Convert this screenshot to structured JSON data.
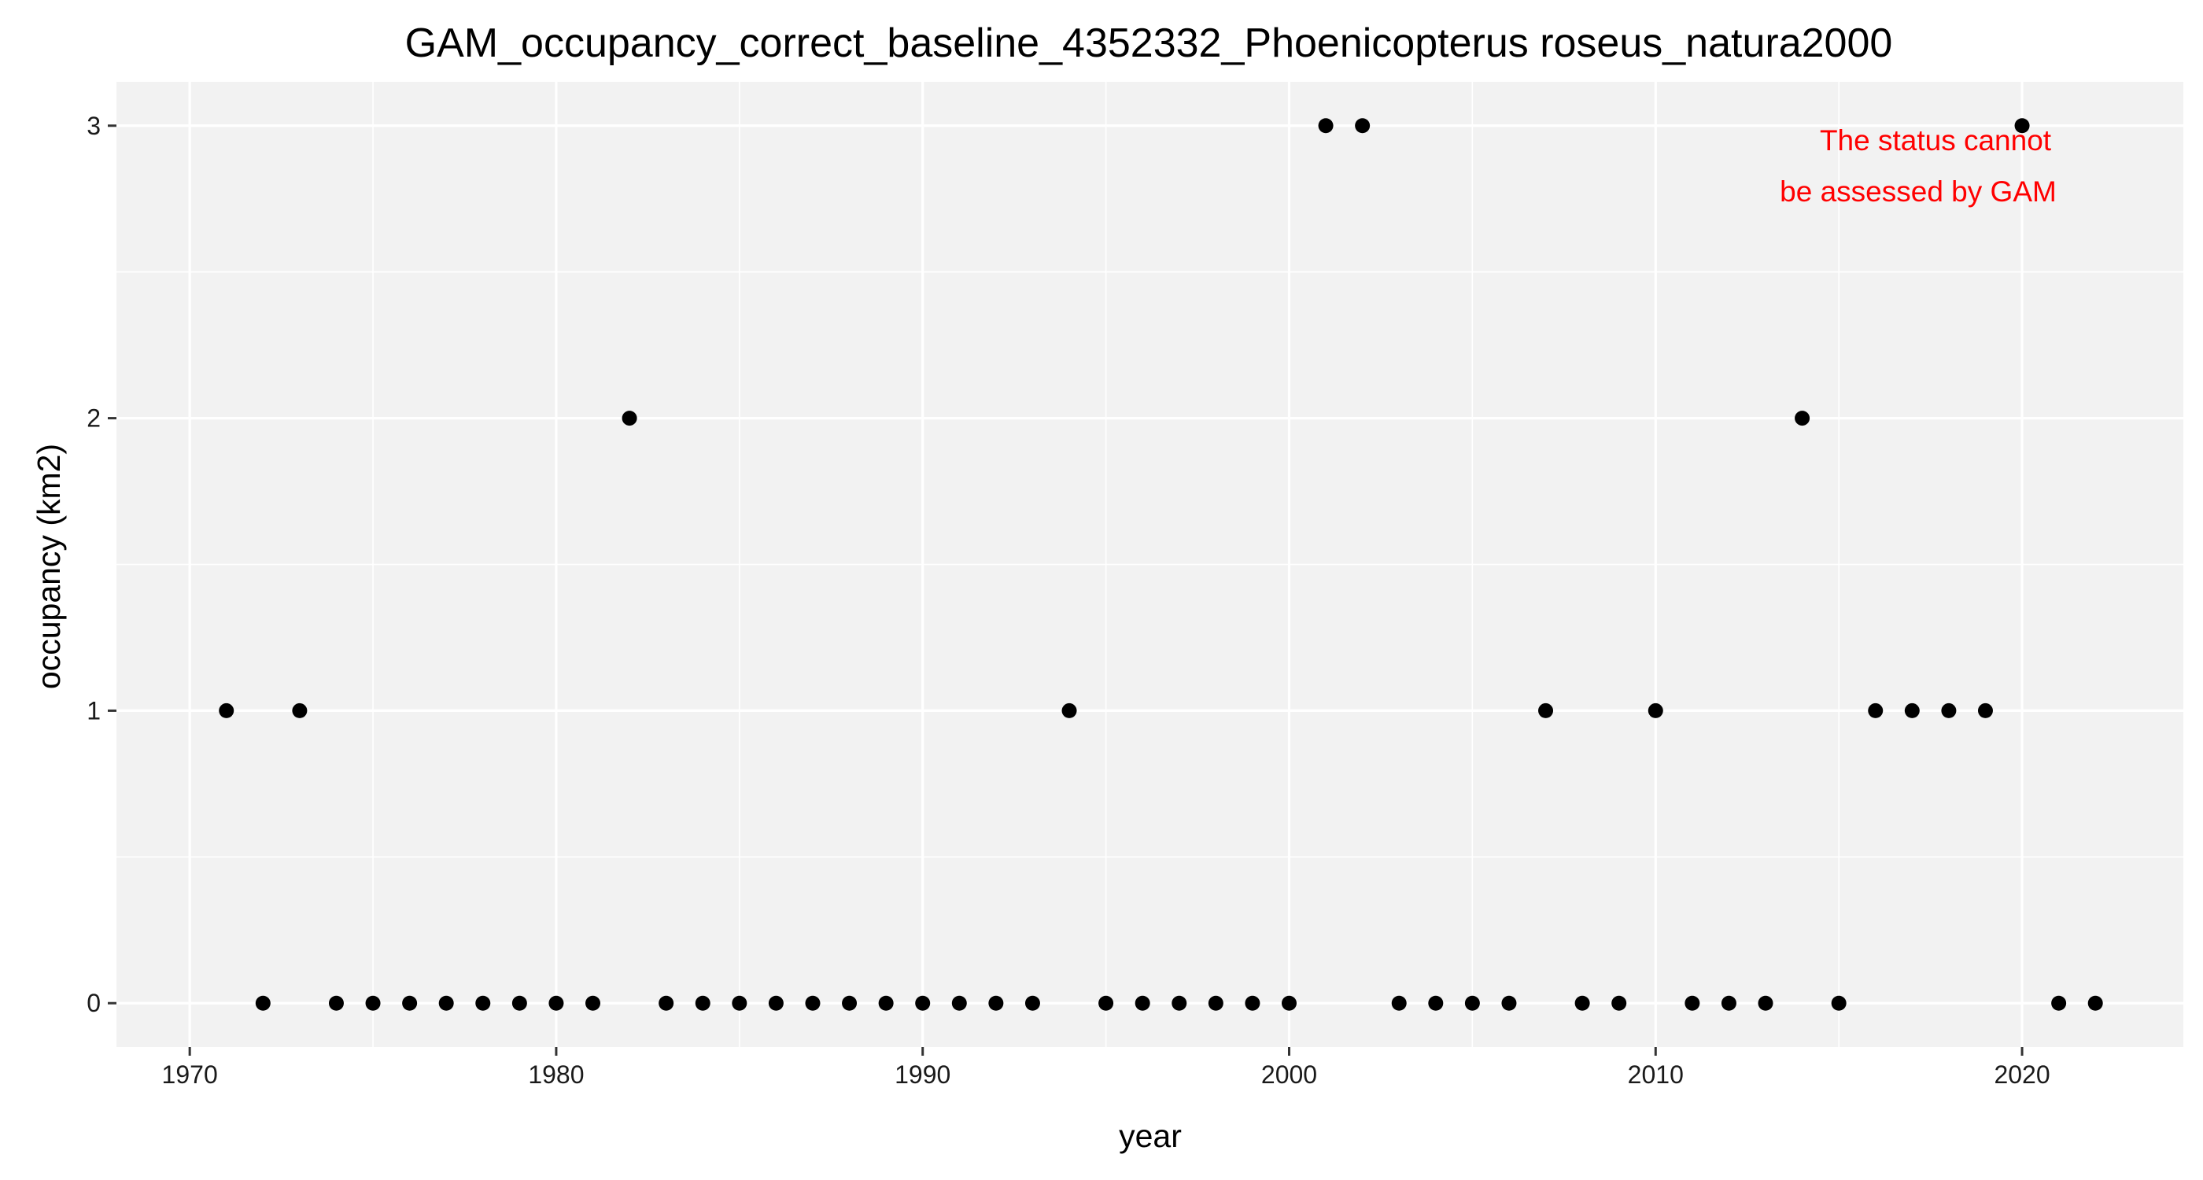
{
  "chart_data": {
    "type": "scatter",
    "title": "GAM_occupancy_correct_baseline_4352332_Phoenicopterus roseus_natura2000",
    "xlabel": "year",
    "ylabel": "occupancy (km2)",
    "xlim": [
      1968,
      2024.4
    ],
    "ylim": [
      -0.15,
      3.15
    ],
    "x_ticks": [
      1970,
      1980,
      1990,
      2000,
      2010,
      2020
    ],
    "y_ticks": [
      0,
      1,
      2,
      3
    ],
    "x_tick_labels": [
      "1970",
      "1980",
      "1990",
      "2000",
      "2010",
      "2020"
    ],
    "y_tick_labels": [
      "0",
      "1",
      "2",
      "3"
    ],
    "grid": true,
    "panel_background": "#f2f2f2",
    "grid_color": "#ffffff",
    "point_color": "#000000",
    "annotation": {
      "lines": [
        "The status cannot",
        "be assessed by GAM"
      ],
      "color": "#ff0000"
    },
    "x": [
      1971,
      1972,
      1973,
      1974,
      1975,
      1976,
      1977,
      1978,
      1979,
      1980,
      1981,
      1982,
      1983,
      1984,
      1985,
      1986,
      1987,
      1988,
      1989,
      1990,
      1991,
      1992,
      1993,
      1994,
      1995,
      1996,
      1997,
      1998,
      1999,
      2000,
      2001,
      2002,
      2003,
      2004,
      2005,
      2006,
      2007,
      2008,
      2009,
      2010,
      2011,
      2012,
      2013,
      2014,
      2015,
      2016,
      2017,
      2018,
      2019,
      2020,
      2021,
      2022
    ],
    "y": [
      1,
      0,
      1,
      0,
      0,
      0,
      0,
      0,
      0,
      0,
      0,
      2,
      0,
      0,
      0,
      0,
      0,
      0,
      0,
      0,
      0,
      0,
      0,
      1,
      0,
      0,
      0,
      0,
      0,
      0,
      3,
      3,
      0,
      0,
      0,
      0,
      1,
      0,
      0,
      1,
      0,
      0,
      0,
      2,
      0,
      1,
      1,
      1,
      1,
      3,
      0,
      0
    ]
  }
}
